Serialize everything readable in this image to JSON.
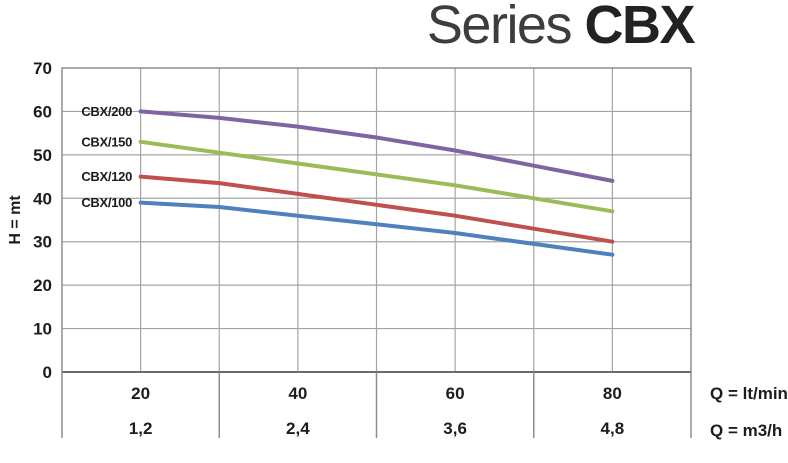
{
  "title": {
    "light": "Series ",
    "bold": "CBX"
  },
  "axes": {
    "y_title": "H = mt",
    "x_unit_primary": "Q = lt/min",
    "x_unit_secondary": "Q = m3/h"
  },
  "chart_data": {
    "type": "line",
    "title": "Series CBX",
    "ylabel": "H = mt",
    "xlabel_primary": "Q = lt/min",
    "xlabel_secondary": "Q = m3/h",
    "grid": true,
    "ylim": [
      0,
      70
    ],
    "xlim_ltmin": [
      10,
      90
    ],
    "y_ticks": [
      0,
      10,
      20,
      30,
      40,
      50,
      60,
      70
    ],
    "x_ticks_ltmin": [
      "20",
      "40",
      "60",
      "80"
    ],
    "x_ticks_m3h": [
      "1,2",
      "2,4",
      "3,6",
      "4,8"
    ],
    "x_ltmin": [
      20,
      30,
      40,
      50,
      60,
      70,
      80
    ],
    "series": [
      {
        "name": "CBX/200",
        "color": "#8064A2",
        "values": [
          60,
          58.5,
          56.5,
          54,
          51,
          47.5,
          44
        ]
      },
      {
        "name": "CBX/150",
        "color": "#9BBB59",
        "values": [
          53,
          50.5,
          48,
          45.5,
          43,
          40,
          37
        ]
      },
      {
        "name": "CBX/120",
        "color": "#C0504D",
        "values": [
          45,
          43.5,
          41,
          38.5,
          36,
          33,
          30
        ]
      },
      {
        "name": "CBX/100",
        "color": "#4F81BD",
        "values": [
          39,
          38,
          36,
          34,
          32,
          29.5,
          27
        ]
      }
    ]
  }
}
